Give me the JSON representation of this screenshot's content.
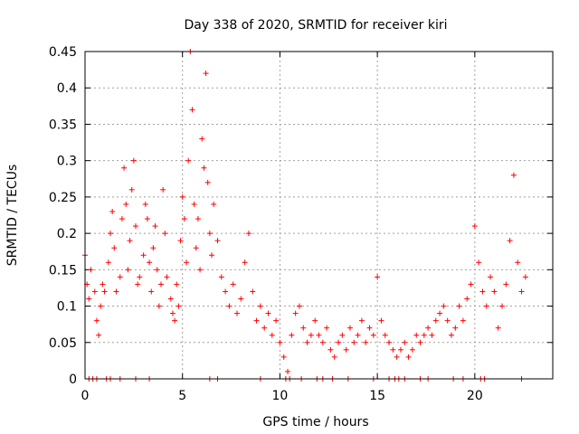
{
  "chart_data": {
    "type": "scatter",
    "title": "Day 338 of 2020, SRMTID for receiver kiri",
    "xlabel": "GPS time / hours",
    "ylabel": "SRMTID / TECUs",
    "xlim": [
      0,
      24
    ],
    "ylim": [
      0,
      0.45
    ],
    "xticks": [
      0,
      5,
      10,
      15,
      20
    ],
    "xtick_labels": [
      "0",
      "5",
      "10",
      "15",
      "20"
    ],
    "yticks": [
      0,
      0.05,
      0.1,
      0.15,
      0.2,
      0.25,
      0.3,
      0.35,
      0.4,
      0.45
    ],
    "ytick_labels": [
      "0",
      "0.05",
      "0.1",
      "0.15",
      "0.2",
      "0.25",
      "0.3",
      "0.35",
      "0.4",
      "0.45"
    ],
    "grid": true,
    "marker": "+",
    "marker_color": "#ff0000",
    "series": [
      {
        "name": "SRMTID",
        "x": [
          0.0,
          0.1,
          0.2,
          0.3,
          0.5,
          0.6,
          0.7,
          0.8,
          0.9,
          1.0,
          1.2,
          1.3,
          1.4,
          1.5,
          1.6,
          1.8,
          1.9,
          2.0,
          2.1,
          2.2,
          2.3,
          2.4,
          2.5,
          2.6,
          2.7,
          2.8,
          3.0,
          3.1,
          3.2,
          3.3,
          3.4,
          3.5,
          3.6,
          3.7,
          3.8,
          3.9,
          4.0,
          4.1,
          4.2,
          4.4,
          4.5,
          4.6,
          4.7,
          4.8,
          4.9,
          5.0,
          5.1,
          5.2,
          5.3,
          5.4,
          5.5,
          5.6,
          5.7,
          5.8,
          5.9,
          6.0,
          6.1,
          6.2,
          6.3,
          6.4,
          6.5,
          6.6,
          6.8,
          7.0,
          7.2,
          7.4,
          7.6,
          7.8,
          8.0,
          8.2,
          8.4,
          8.6,
          8.8,
          9.0,
          9.2,
          9.4,
          9.6,
          9.8,
          10.0,
          10.2,
          10.4,
          10.6,
          10.8,
          11.0,
          11.2,
          11.4,
          11.6,
          11.8,
          12.0,
          12.2,
          12.4,
          12.6,
          12.8,
          13.0,
          13.2,
          13.4,
          13.6,
          13.8,
          14.0,
          14.2,
          14.4,
          14.6,
          14.8,
          15.0,
          15.2,
          15.4,
          15.6,
          15.8,
          16.0,
          16.2,
          16.4,
          16.6,
          16.8,
          17.0,
          17.2,
          17.4,
          17.6,
          17.8,
          18.0,
          18.2,
          18.4,
          18.6,
          18.8,
          19.0,
          19.2,
          19.4,
          19.6,
          19.8,
          20.0,
          20.2,
          20.4,
          20.6,
          20.8,
          21.0,
          21.2,
          21.4,
          21.6,
          21.8,
          22.0,
          22.2,
          22.4,
          22.6
        ],
        "y": [
          0.17,
          0.13,
          0.11,
          0.15,
          0.12,
          0.08,
          0.06,
          0.1,
          0.13,
          0.12,
          0.16,
          0.2,
          0.23,
          0.18,
          0.12,
          0.14,
          0.22,
          0.29,
          0.24,
          0.15,
          0.19,
          0.26,
          0.3,
          0.21,
          0.13,
          0.14,
          0.17,
          0.24,
          0.22,
          0.16,
          0.12,
          0.18,
          0.21,
          0.15,
          0.1,
          0.13,
          0.26,
          0.2,
          0.14,
          0.11,
          0.09,
          0.08,
          0.13,
          0.1,
          0.19,
          0.25,
          0.22,
          0.16,
          0.3,
          0.45,
          0.37,
          0.24,
          0.18,
          0.22,
          0.15,
          0.33,
          0.29,
          0.42,
          0.27,
          0.2,
          0.17,
          0.24,
          0.19,
          0.14,
          0.12,
          0.1,
          0.13,
          0.09,
          0.11,
          0.16,
          0.2,
          0.12,
          0.08,
          0.1,
          0.07,
          0.09,
          0.06,
          0.08,
          0.05,
          0.03,
          0.01,
          0.06,
          0.09,
          0.1,
          0.07,
          0.05,
          0.06,
          0.08,
          0.06,
          0.05,
          0.07,
          0.04,
          0.03,
          0.05,
          0.06,
          0.04,
          0.07,
          0.05,
          0.06,
          0.08,
          0.05,
          0.07,
          0.06,
          0.14,
          0.08,
          0.06,
          0.05,
          0.04,
          0.03,
          0.04,
          0.05,
          0.03,
          0.04,
          0.06,
          0.05,
          0.06,
          0.07,
          0.06,
          0.08,
          0.09,
          0.1,
          0.08,
          0.06,
          0.07,
          0.1,
          0.08,
          0.11,
          0.13,
          0.21,
          0.16,
          0.12,
          0.1,
          0.14,
          0.12,
          0.07,
          0.1,
          0.13,
          0.19,
          0.28,
          0.16,
          0.12,
          0.14
        ]
      }
    ],
    "zero_points_x": [
      0.2,
      0.4,
      0.6,
      1.1,
      1.3,
      1.8,
      2.6,
      3.3,
      6.4,
      6.8,
      9.0,
      10.3,
      10.5,
      11.1,
      11.9,
      12.2,
      12.7,
      13.5,
      14.8,
      15.6,
      15.9,
      16.1,
      16.4,
      17.2,
      17.6,
      18.9,
      19.4,
      20.3,
      20.5,
      22.4
    ]
  }
}
